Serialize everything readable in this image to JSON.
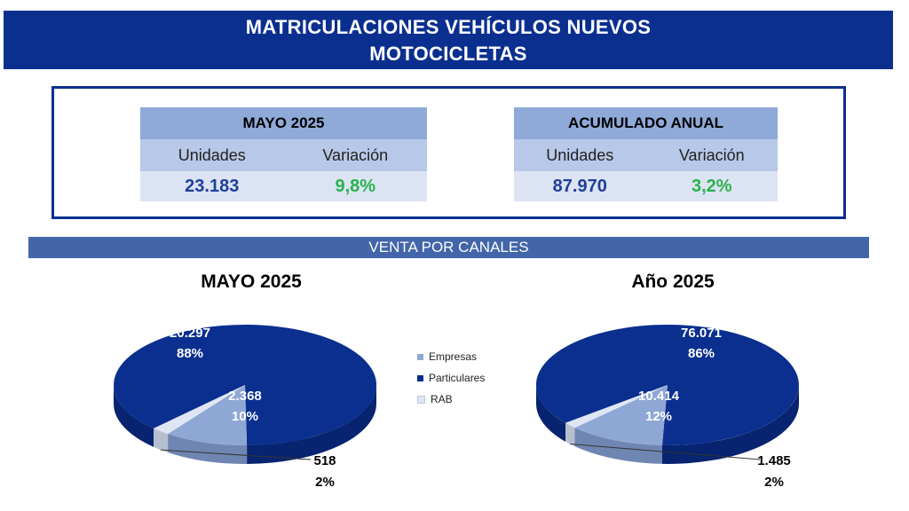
{
  "header": {
    "line1": "MATRICULACIONES VEHÍCULOS NUEVOS",
    "line2": "MOTOCICLETAS"
  },
  "summary": [
    {
      "title": "MAYO 2025",
      "col1": "Unidades",
      "col2": "Variación",
      "units": "23.183",
      "variation": "9,8%"
    },
    {
      "title": "ACUMULADO ANUAL",
      "col1": "Unidades",
      "col2": "Variación",
      "units": "87.970",
      "variation": "3,2%"
    }
  ],
  "channels_title": "VENTA POR CANALES",
  "legend": [
    {
      "name": "Empresas",
      "color": "#8ea7d4"
    },
    {
      "name": "Particulares",
      "color": "#0b2f8f"
    },
    {
      "name": "RAB",
      "color": "#dfe6f3"
    }
  ],
  "chart_data": [
    {
      "type": "pie",
      "title": "MAYO 2025",
      "slices": [
        {
          "name": "Particulares",
          "value": 20297,
          "value_label": "20.297",
          "percent_label": "88%"
        },
        {
          "name": "Empresas",
          "value": 2368,
          "value_label": "2.368",
          "percent_label": "10%"
        },
        {
          "name": "RAB",
          "value": 518,
          "value_label": "518",
          "percent_label": "2%"
        }
      ]
    },
    {
      "type": "pie",
      "title": "Año 2025",
      "slices": [
        {
          "name": "Particulares",
          "value": 76071,
          "value_label": "76.071",
          "percent_label": "86%"
        },
        {
          "name": "Empresas",
          "value": 10414,
          "value_label": "10.414",
          "percent_label": "12%"
        },
        {
          "name": "RAB",
          "value": 1485,
          "value_label": "1.485",
          "percent_label": "2%"
        }
      ]
    }
  ]
}
